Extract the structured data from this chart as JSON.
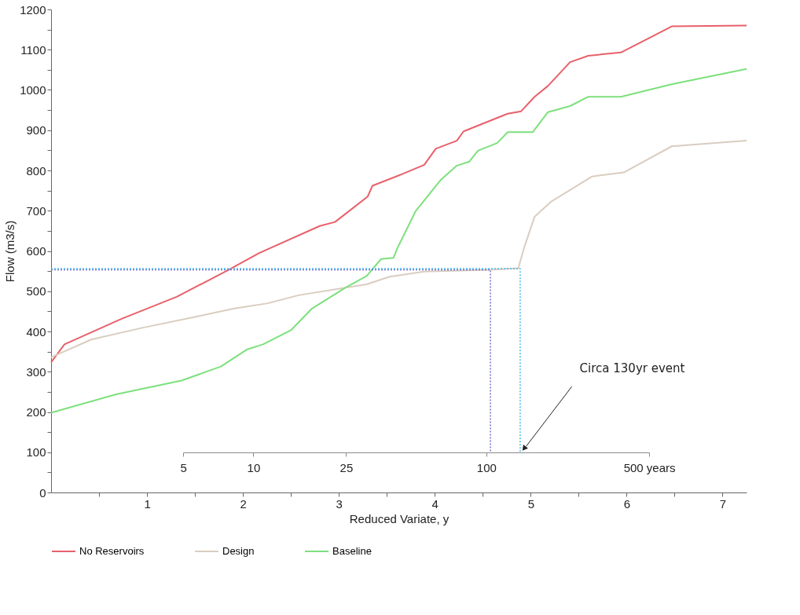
{
  "chart_data": {
    "type": "line",
    "xlabel": "Reduced Variate, y",
    "ylabel": "Flow (m3/s)",
    "xlim": [
      0,
      7.25
    ],
    "ylim": [
      0,
      1200
    ],
    "xticks": [
      {
        "value": 0.5,
        "label": null
      },
      1,
      {
        "value": 1.5,
        "label": null
      },
      2,
      {
        "value": 2.5,
        "label": null
      },
      3,
      {
        "value": 3.5,
        "label": null
      },
      4,
      {
        "value": 4.5,
        "label": null
      },
      5,
      {
        "value": 5.5,
        "label": null
      },
      6,
      {
        "value": 6.5,
        "label": null
      },
      7
    ],
    "yticks": [
      0,
      {
        "value": 50,
        "label": null
      },
      100,
      {
        "value": 150,
        "label": null
      },
      200,
      {
        "value": 250,
        "label": null
      },
      300,
      {
        "value": 350,
        "label": null
      },
      400,
      {
        "value": 450,
        "label": null
      },
      500,
      {
        "value": 550,
        "label": null
      },
      600,
      {
        "value": 650,
        "label": null
      },
      700,
      {
        "value": 750,
        "label": null
      },
      800,
      {
        "value": 850,
        "label": null
      },
      900,
      {
        "value": 950,
        "label": null
      },
      1000,
      {
        "value": 1050,
        "label": null
      },
      1100,
      {
        "value": 1150,
        "label": null
      },
      1200
    ],
    "x2lim": [
      5,
      500
    ],
    "log": "x2",
    "x2ticks": [
      5,
      10,
      25,
      100,
      {
        "value": 500,
        "label": "500 years"
      }
    ],
    "grid": false,
    "legend": "bottom",
    "marker": "none",
    "line_style": "solid",
    "series": [
      {
        "name": "No Reservoirs",
        "color": "#e8606a",
        "x": [
          0,
          0.14,
          0.74,
          1.31,
          1.85,
          2.17,
          2.8,
          2.96,
          3.3,
          3.35,
          3.66,
          3.89,
          4.01,
          4.23,
          4.3,
          4.76,
          4.9,
          5.04,
          5.18,
          5.41,
          5.6,
          5.94,
          6.47,
          7.25
        ],
        "values": [
          323,
          368,
          432,
          486,
          553,
          595,
          662,
          672,
          735,
          762,
          791,
          814,
          854,
          874,
          897,
          941,
          947,
          983,
          1010,
          1069,
          1085,
          1093,
          1158,
          1160
        ]
      },
      {
        "name": "Design",
        "color": "#d9cdc0",
        "x": [
          0,
          0.42,
          0.95,
          1.5,
          1.91,
          2.26,
          2.58,
          3.07,
          3.29,
          3.53,
          3.89,
          4.58,
          4.87,
          4.93,
          5.04,
          5.21,
          5.64,
          5.97,
          6.47,
          7.25
        ],
        "values": [
          336,
          380,
          409,
          436,
          457,
          470,
          490,
          509,
          517,
          536,
          549,
          553,
          557,
          607,
          685,
          722,
          785,
          795,
          860,
          874
        ]
      },
      {
        "name": "Baseline",
        "color": "#7de07d",
        "x": [
          0,
          0.68,
          1.36,
          1.77,
          2.04,
          2.21,
          2.5,
          2.72,
          3.07,
          3.29,
          3.44,
          3.57,
          3.61,
          3.8,
          4.06,
          4.23,
          4.36,
          4.45,
          4.65,
          4.76,
          5.02,
          5.18,
          5.41,
          5.6,
          5.94,
          6.47,
          7.25
        ],
        "values": [
          198,
          244,
          278,
          313,
          355,
          368,
          403,
          457,
          509,
          538,
          580,
          583,
          607,
          699,
          776,
          812,
          822,
          849,
          868,
          895,
          895,
          945,
          960,
          983,
          983,
          1014,
          1052
        ]
      },
      {
        "color": "#7070cc",
        "line_style": "dotted",
        "x": [
          0,
          4.58,
          4.58
        ],
        "values": [
          553,
          553,
          100
        ]
      },
      {
        "color": "#44bbee",
        "line_style": "dotted",
        "x": [
          0,
          4.89,
          4.89
        ],
        "values": [
          556,
          556,
          100
        ]
      }
    ],
    "annotations": [
      {
        "text": "Circa 130yr event",
        "x": 4.92,
        "y": 105
      }
    ]
  }
}
